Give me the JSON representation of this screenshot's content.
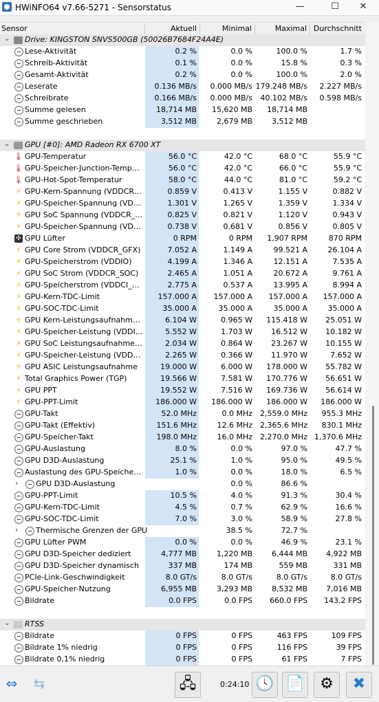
{
  "window": {
    "title": "HWiNFO64 v7.66-5271 - Sensorstatus",
    "minimize": "—",
    "maximize": "☐",
    "close": "✕"
  },
  "columns": {
    "sensor": "Sensor",
    "current": "Aktuell",
    "min": "Minimal",
    "max": "Maximal",
    "avg": "Durchschnitt"
  },
  "rows": [
    {
      "t": "group",
      "name": "Drive: KINGSTON SNVS500GB (50026B7684F24A4E)",
      "icon": "drive-icon"
    },
    {
      "name": "Lese-Aktivität",
      "icon": "clock-icon",
      "cur": "0.2 %",
      "min": "0.0 %",
      "max": "100.0 %",
      "avg": "1.7 %"
    },
    {
      "name": "Schreib-Aktivität",
      "icon": "clock-icon",
      "cur": "0.1 %",
      "min": "0.0 %",
      "max": "15.8 %",
      "avg": "0.3 %"
    },
    {
      "name": "Gesamt-Aktivität",
      "icon": "clock-icon",
      "cur": "0.2 %",
      "min": "0.0 %",
      "max": "100.0 %",
      "avg": "2.0 %"
    },
    {
      "name": "Leserate",
      "icon": "clock-icon",
      "cur": "0.136 MB/s",
      "min": "0.000 MB/s",
      "max": "179.248 MB/s",
      "avg": "2.227 MB/s"
    },
    {
      "name": "Schreibrate",
      "icon": "clock-icon",
      "cur": "0.166 MB/s",
      "min": "0.000 MB/s",
      "max": "40.102 MB/s",
      "avg": "0.598 MB/s"
    },
    {
      "name": "Summe gelesen",
      "icon": "clock-icon",
      "cur": "18,714 MB",
      "min": "15,620 MB",
      "max": "18,714 MB",
      "avg": ""
    },
    {
      "name": "Summe geschrieben",
      "icon": "clock-icon",
      "cur": "3,512 MB",
      "min": "2,679 MB",
      "max": "3,512 MB",
      "avg": ""
    },
    {
      "t": "spacer"
    },
    {
      "t": "group",
      "name": "GPU [#0]: AMD Radeon RX 6700 XT",
      "icon": "gpu-icon"
    },
    {
      "name": "GPU-Temperatur",
      "icon": "thermometer-icon",
      "cur": "56.0 °C",
      "min": "42.0 °C",
      "max": "68.0 °C",
      "avg": "55.9 °C"
    },
    {
      "name": "GPU-Speicher-Junction-Temperatur",
      "icon": "thermometer-icon",
      "cur": "56.0 °C",
      "min": "42.0 °C",
      "max": "66.0 °C",
      "avg": "55.9 °C"
    },
    {
      "name": "GPU-Hot-Spot-Temperatur",
      "icon": "thermometer-icon",
      "cur": "58.0 °C",
      "min": "44.0 °C",
      "max": "81.0 °C",
      "avg": "59.2 °C"
    },
    {
      "name": "GPU-Kern-Spannung (VDDCR_GFX)",
      "icon": "lightning-icon",
      "cur": "0.859 V",
      "min": "0.413 V",
      "max": "1.155 V",
      "avg": "0.882 V"
    },
    {
      "name": "GPU-Speicher-Spannung (VDDIO)",
      "icon": "lightning-icon",
      "cur": "1.301 V",
      "min": "1.265 V",
      "max": "1.359 V",
      "avg": "1.334 V"
    },
    {
      "name": "GPU SoC Spannung (VDDCR_SOC)",
      "icon": "lightning-icon",
      "cur": "0.825 V",
      "min": "0.821 V",
      "max": "1.120 V",
      "avg": "0.943 V"
    },
    {
      "name": "GPU-Speicher-Spannung (VDDCI_...",
      "icon": "lightning-icon",
      "cur": "0.738 V",
      "min": "0.681 V",
      "max": "0.856 V",
      "avg": "0.805 V"
    },
    {
      "name": "GPU Lüfter",
      "icon": "fan-icon",
      "cur": "0 RPM",
      "min": "0 RPM",
      "max": "1,907 RPM",
      "avg": "870 RPM"
    },
    {
      "name": "GPU Core Strom (VDDCR_GFX)",
      "icon": "lightning-icon",
      "cur": "7.052 A",
      "min": "1.149 A",
      "max": "99.521 A",
      "avg": "26.104 A"
    },
    {
      "name": "GPU-Speicherstrom (VDDIO)",
      "icon": "lightning-icon",
      "cur": "4.199 A",
      "min": "1.346 A",
      "max": "12.151 A",
      "avg": "7.535 A"
    },
    {
      "name": "GPU SoC Strom (VDDCR_SOC)",
      "icon": "lightning-icon",
      "cur": "2.465 A",
      "min": "1.051 A",
      "max": "20.672 A",
      "avg": "9.761 A"
    },
    {
      "name": "GPU-Speicherstrom (VDDCI_MEM)",
      "icon": "lightning-icon",
      "cur": "2.775 A",
      "min": "0.537 A",
      "max": "13.995 A",
      "avg": "8.994 A"
    },
    {
      "name": "GPU-Kern-TDC-Limit",
      "icon": "lightning-icon",
      "cur": "157.000 A",
      "min": "157.000 A",
      "max": "157.000 A",
      "avg": "157.000 A"
    },
    {
      "name": "GPU-SOC-TDC-Limit",
      "icon": "lightning-icon",
      "cur": "35.000 A",
      "min": "35.000 A",
      "max": "35.000 A",
      "avg": "35.000 A"
    },
    {
      "name": "GPU Kern-Leistungsaufnahme (V...",
      "icon": "lightning-icon",
      "cur": "6.104 W",
      "min": "0.965 W",
      "max": "115.418 W",
      "avg": "25.051 W"
    },
    {
      "name": "GPU-Speicher-Leistung (VDDIO)",
      "icon": "lightning-icon",
      "cur": "5.552 W",
      "min": "1.703 W",
      "max": "16.512 W",
      "avg": "10.182 W"
    },
    {
      "name": "GPU SoC Leistungsaufnahme (VD...",
      "icon": "lightning-icon",
      "cur": "2.034 W",
      "min": "0.864 W",
      "max": "23.267 W",
      "avg": "10.155 W"
    },
    {
      "name": "GPU-Speicher-Leistung (VDDCI_M...",
      "icon": "lightning-icon",
      "cur": "2.265 W",
      "min": "0.366 W",
      "max": "11.970 W",
      "avg": "7.652 W"
    },
    {
      "name": "GPU ASIC Leistungsaufnahme",
      "icon": "lightning-icon",
      "cur": "19.000 W",
      "min": "6.000 W",
      "max": "178.000 W",
      "avg": "55.782 W"
    },
    {
      "name": "Total Graphics Power (TGP)",
      "icon": "lightning-icon",
      "cur": "19.566 W",
      "min": "7.581 W",
      "max": "170.776 W",
      "avg": "56.651 W"
    },
    {
      "name": "GPU PPT",
      "icon": "lightning-icon",
      "cur": "19.552 W",
      "min": "7.516 W",
      "max": "169.736 W",
      "avg": "56.614 W"
    },
    {
      "name": "GPU-PPT-Limit",
      "icon": "lightning-icon",
      "cur": "186.000 W",
      "min": "186.000 W",
      "max": "186.000 W",
      "avg": "186.000 W"
    },
    {
      "name": "GPU-Takt",
      "icon": "clock-icon",
      "cur": "52.0 MHz",
      "min": "0.0 MHz",
      "max": "2,559.0 MHz",
      "avg": "955.3 MHz"
    },
    {
      "name": "GPU-Takt (Effektiv)",
      "icon": "clock-icon",
      "cur": "151.6 MHz",
      "min": "12.6 MHz",
      "max": "2,365.6 MHz",
      "avg": "830.1 MHz"
    },
    {
      "name": "GPU-Speicher-Takt",
      "icon": "clock-icon",
      "cur": "198.0 MHz",
      "min": "16.0 MHz",
      "max": "2,270.0 MHz",
      "avg": "1,370.6 MHz"
    },
    {
      "name": "GPU-Auslastung",
      "icon": "clock-icon",
      "cur": "8.0 %",
      "min": "0.0 %",
      "max": "97.0 %",
      "avg": "47.7 %"
    },
    {
      "name": "GPU D3D-Auslastung",
      "icon": "clock-icon",
      "cur": "25.1 %",
      "min": "1.0 %",
      "max": "95.0 %",
      "avg": "49.5 %"
    },
    {
      "name": "Auslastung des GPU-Speicher-Co...",
      "icon": "clock-icon",
      "cur": "1.0 %",
      "min": "0.0 %",
      "max": "18.0 %",
      "avg": "6.5 %"
    },
    {
      "t": "sub",
      "name": "GPU D3D-Auslastung",
      "icon": "clock-icon",
      "cur": "",
      "min": "0.0 %",
      "max": "86.6 %",
      "avg": ""
    },
    {
      "name": "GPU-PPT-Limit",
      "icon": "clock-icon",
      "cur": "10.5 %",
      "min": "4.0 %",
      "max": "91.3 %",
      "avg": "30.4 %"
    },
    {
      "name": "GPU-Kern-TDC-Limit",
      "icon": "clock-icon",
      "cur": "4.5 %",
      "min": "0.7 %",
      "max": "62.9 %",
      "avg": "16.6 %"
    },
    {
      "name": "GPU-SOC-TDC-Limit",
      "icon": "clock-icon",
      "cur": "7.0 %",
      "min": "3.0 %",
      "max": "58.9 %",
      "avg": "27.8 %"
    },
    {
      "t": "sub",
      "name": "Thermische Grenzen der GPU",
      "icon": "clock-icon",
      "cur": "",
      "min": "38.5 %",
      "max": "72.7 %",
      "avg": ""
    },
    {
      "name": "GPU Lüfter PWM",
      "icon": "clock-icon",
      "cur": "0.0 %",
      "min": "0.0 %",
      "max": "46.9 %",
      "avg": "23.1 %"
    },
    {
      "name": "GPU D3D-Speicher dediziert",
      "icon": "clock-icon",
      "cur": "4,777 MB",
      "min": "1,220 MB",
      "max": "6,444 MB",
      "avg": "4,922 MB"
    },
    {
      "name": "GPU D3D-Speicher dynamisch",
      "icon": "clock-icon",
      "cur": "337 MB",
      "min": "174 MB",
      "max": "559 MB",
      "avg": "331 MB"
    },
    {
      "name": "PCIe-Link-Geschwindigkeit",
      "icon": "clock-icon",
      "cur": "8.0 GT/s",
      "min": "8.0 GT/s",
      "max": "8.0 GT/s",
      "avg": "8.0 GT/s"
    },
    {
      "name": "GPU-Speicher-Nutzung",
      "icon": "clock-icon",
      "cur": "6,955 MB",
      "min": "3,293 MB",
      "max": "8,532 MB",
      "avg": "7,016 MB"
    },
    {
      "name": "Bildrate",
      "icon": "clock-icon",
      "cur": "0.0 FPS",
      "min": "0.0 FPS",
      "max": "660.0 FPS",
      "avg": "143.2 FPS"
    },
    {
      "t": "spacer"
    },
    {
      "t": "group",
      "name": "RTSS",
      "icon": "rtss-icon"
    },
    {
      "name": "Bildrate",
      "icon": "clock-icon",
      "cur": "0 FPS",
      "min": "0 FPS",
      "max": "463 FPS",
      "avg": "109 FPS"
    },
    {
      "name": "Bildrate 1% niedrig",
      "icon": "clock-icon",
      "cur": "0 FPS",
      "min": "0 FPS",
      "max": "116 FPS",
      "avg": "39 FPS"
    },
    {
      "name": "Bildrate 0,1% niedrig",
      "icon": "clock-icon",
      "cur": "0 FPS",
      "min": "0 FPS",
      "max": "61 FPS",
      "avg": "7 FPS"
    }
  ],
  "statusbar": {
    "timer": "0:24:10"
  }
}
